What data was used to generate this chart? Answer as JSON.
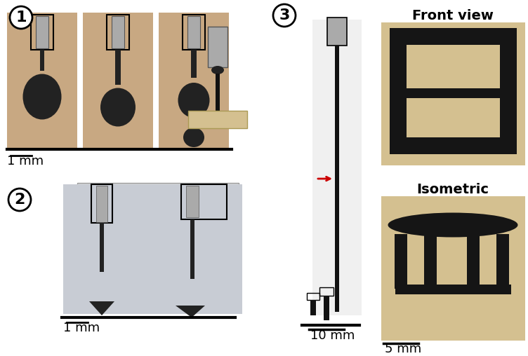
{
  "bg_color": "#ffffff",
  "panel1_label": "1",
  "panel2_label": "2",
  "panel3_label": "3",
  "panel1_scale": "1 mm",
  "panel2_scale": "1 mm",
  "panel3_scale": "10 mm",
  "panel_front_label": "Front view",
  "panel_iso_label": "Isometric",
  "panel_right_scale": "5 mm",
  "photo1_bg": "#c8a882",
  "photo2_bg": "#c8ccd4",
  "photo_right_bg": "#d4c090",
  "melt_color": "#222222",
  "nozzle_gray": "#aaaaaa",
  "nozzle_dark": "#555555",
  "substrate_color": "#d4c090",
  "substrate_edge": "#aa9955",
  "red_arrow_color": "#cc0000",
  "circle_label_size": 16,
  "scale_text_size": 13,
  "view_label_size": 14
}
